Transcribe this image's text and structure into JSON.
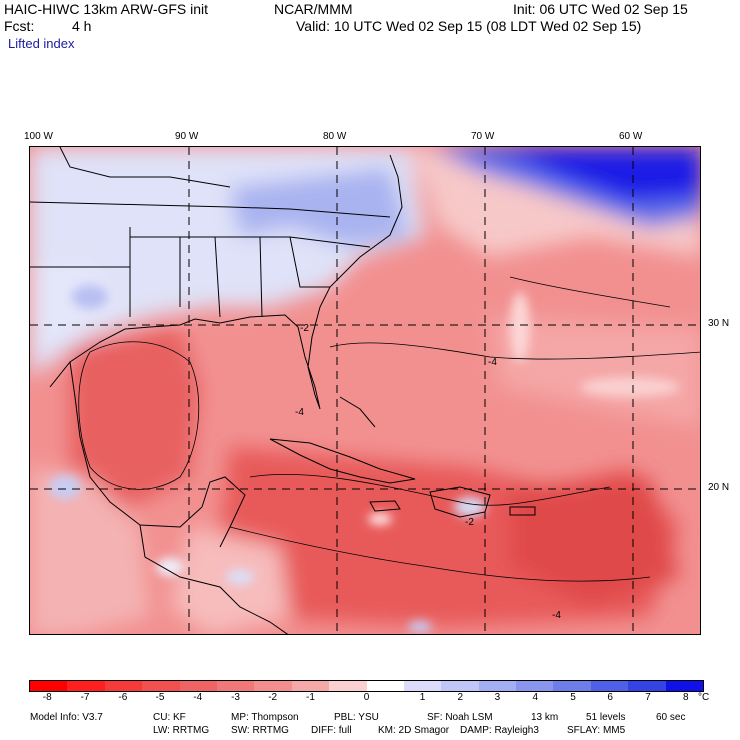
{
  "header": {
    "title": "HAIC-HIWC 13km ARW-GFS init",
    "org": "NCAR/MMM",
    "init": "Init: 06 UTC Wed 02 Sep 15",
    "fcst_label": "Fcst:",
    "fcst_value": "4 h",
    "valid": "Valid: 10 UTC Wed 02 Sep 15 (08 LDT Wed 02 Sep 15)",
    "field": "Lifted index"
  },
  "map": {
    "lon_labels": [
      "100 W",
      "90 W",
      "80 W",
      "70 W",
      "60 W"
    ],
    "lat_labels": [
      "30 N",
      "20 N"
    ],
    "contour_labels": [
      "-2",
      "-4",
      "-4",
      "-4",
      "-2"
    ],
    "colors": {
      "land_cool": "#d8dcf8",
      "cool_blue": "#9aa8f0",
      "deep_blue": "#1e1ee0",
      "warm_light": "#f7b0b0",
      "warm_mid": "#f07a7a",
      "warm_strong": "#e85050",
      "border": "#000000"
    }
  },
  "legend": {
    "labels": [
      "-8",
      "-7",
      "-6",
      "-5",
      "-4",
      "-3",
      "-2",
      "-1",
      "0",
      "1",
      "2",
      "3",
      "4",
      "5",
      "6",
      "7",
      "8"
    ],
    "unit": "°C",
    "colors": [
      "#ff0000",
      "#ff1f1f",
      "#f53a3a",
      "#f05050",
      "#ee6464",
      "#f07878",
      "#f28e8e",
      "#f5a8a8",
      "#fad0d0",
      "#ffffff",
      "#dcdcfa",
      "#c0c6f7",
      "#a4aef2",
      "#8a96ee",
      "#6e7ee8",
      "#5060e6",
      "#3444e4",
      "#1010e8"
    ]
  },
  "footer": {
    "line1": [
      "Model Info: V3.7",
      "CU: KF",
      "MP: Thompson",
      "PBL: YSU",
      "SF: Noah LSM",
      "13 km",
      "51 levels",
      "60 sec"
    ],
    "line2": [
      "LW: RRTMG",
      "SW: RRTMG",
      "DIFF: full",
      "KM: 2D Smagor",
      "DAMP: Rayleigh3",
      "SFLAY: MM5"
    ]
  }
}
